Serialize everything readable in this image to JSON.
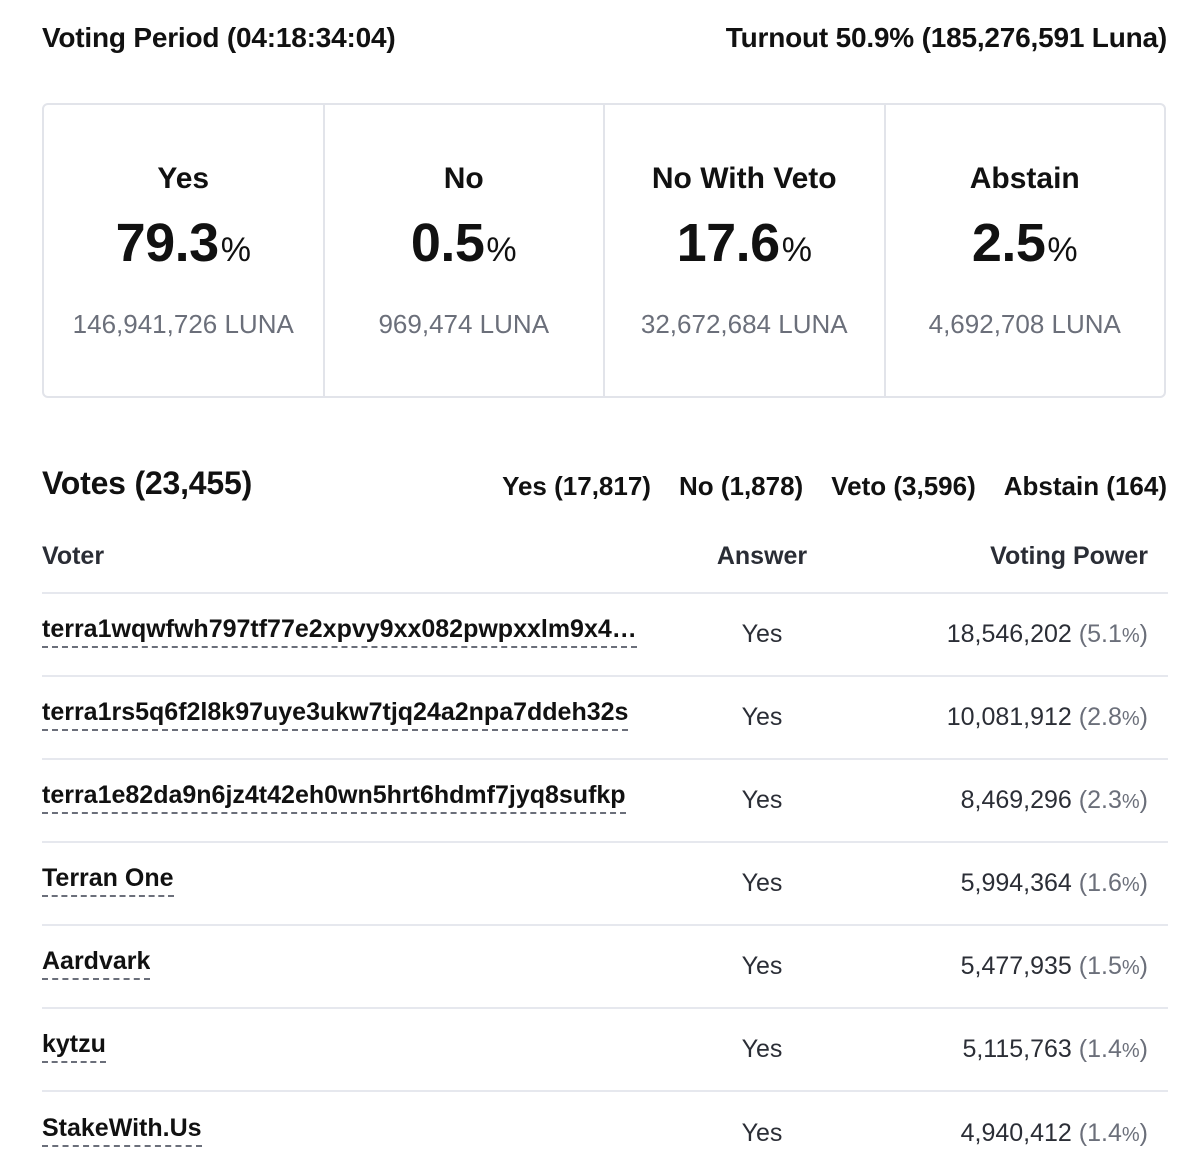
{
  "header": {
    "voting_period": "Voting Period (04:18:34:04)",
    "turnout": "Turnout 50.9% (185,276,591 Luna)"
  },
  "summary": [
    {
      "label": "Yes",
      "percent": "79.3",
      "percent_sign": "%",
      "amount": "146,941,726 LUNA"
    },
    {
      "label": "No",
      "percent": "0.5",
      "percent_sign": "%",
      "amount": "969,474 LUNA"
    },
    {
      "label": "No With Veto",
      "percent": "17.6",
      "percent_sign": "%",
      "amount": "32,672,684 LUNA"
    },
    {
      "label": "Abstain",
      "percent": "2.5",
      "percent_sign": "%",
      "amount": "4,692,708 LUNA"
    }
  ],
  "votes": {
    "title": "Votes (23,455)",
    "filters": [
      "Yes (17,817)",
      "No (1,878)",
      "Veto (3,596)",
      "Abstain (164)"
    ]
  },
  "table": {
    "columns": {
      "voter": "Voter",
      "answer": "Answer",
      "power": "Voting Power"
    },
    "rows": [
      {
        "voter": "terra1wqwfwh797tf77e2xpvy9xx082pwpxxlm9x4…",
        "answer": "Yes",
        "power": "18,546,202",
        "pct_open": "(5.1",
        "pct_sign": "%",
        "pct_close": ")"
      },
      {
        "voter": "terra1rs5q6f2l8k97uye3ukw7tjq24a2npa7ddeh32s",
        "answer": "Yes",
        "power": "10,081,912",
        "pct_open": "(2.8",
        "pct_sign": "%",
        "pct_close": ")"
      },
      {
        "voter": "terra1e82da9n6jz4t42eh0wn5hrt6hdmf7jyq8sufkp",
        "answer": "Yes",
        "power": "8,469,296",
        "pct_open": "(2.3",
        "pct_sign": "%",
        "pct_close": ")"
      },
      {
        "voter": "Terran One",
        "answer": "Yes",
        "power": "5,994,364",
        "pct_open": "(1.6",
        "pct_sign": "%",
        "pct_close": ")"
      },
      {
        "voter": "Aardvark",
        "answer": "Yes",
        "power": "5,477,935",
        "pct_open": "(1.5",
        "pct_sign": "%",
        "pct_close": ")"
      },
      {
        "voter": "kytzu",
        "answer": "Yes",
        "power": "5,115,763",
        "pct_open": "(1.4",
        "pct_sign": "%",
        "pct_close": ")"
      },
      {
        "voter": "StakeWith.Us",
        "answer": "Yes",
        "power": "4,940,412",
        "pct_open": "(1.4",
        "pct_sign": "%",
        "pct_close": ")"
      }
    ]
  }
}
